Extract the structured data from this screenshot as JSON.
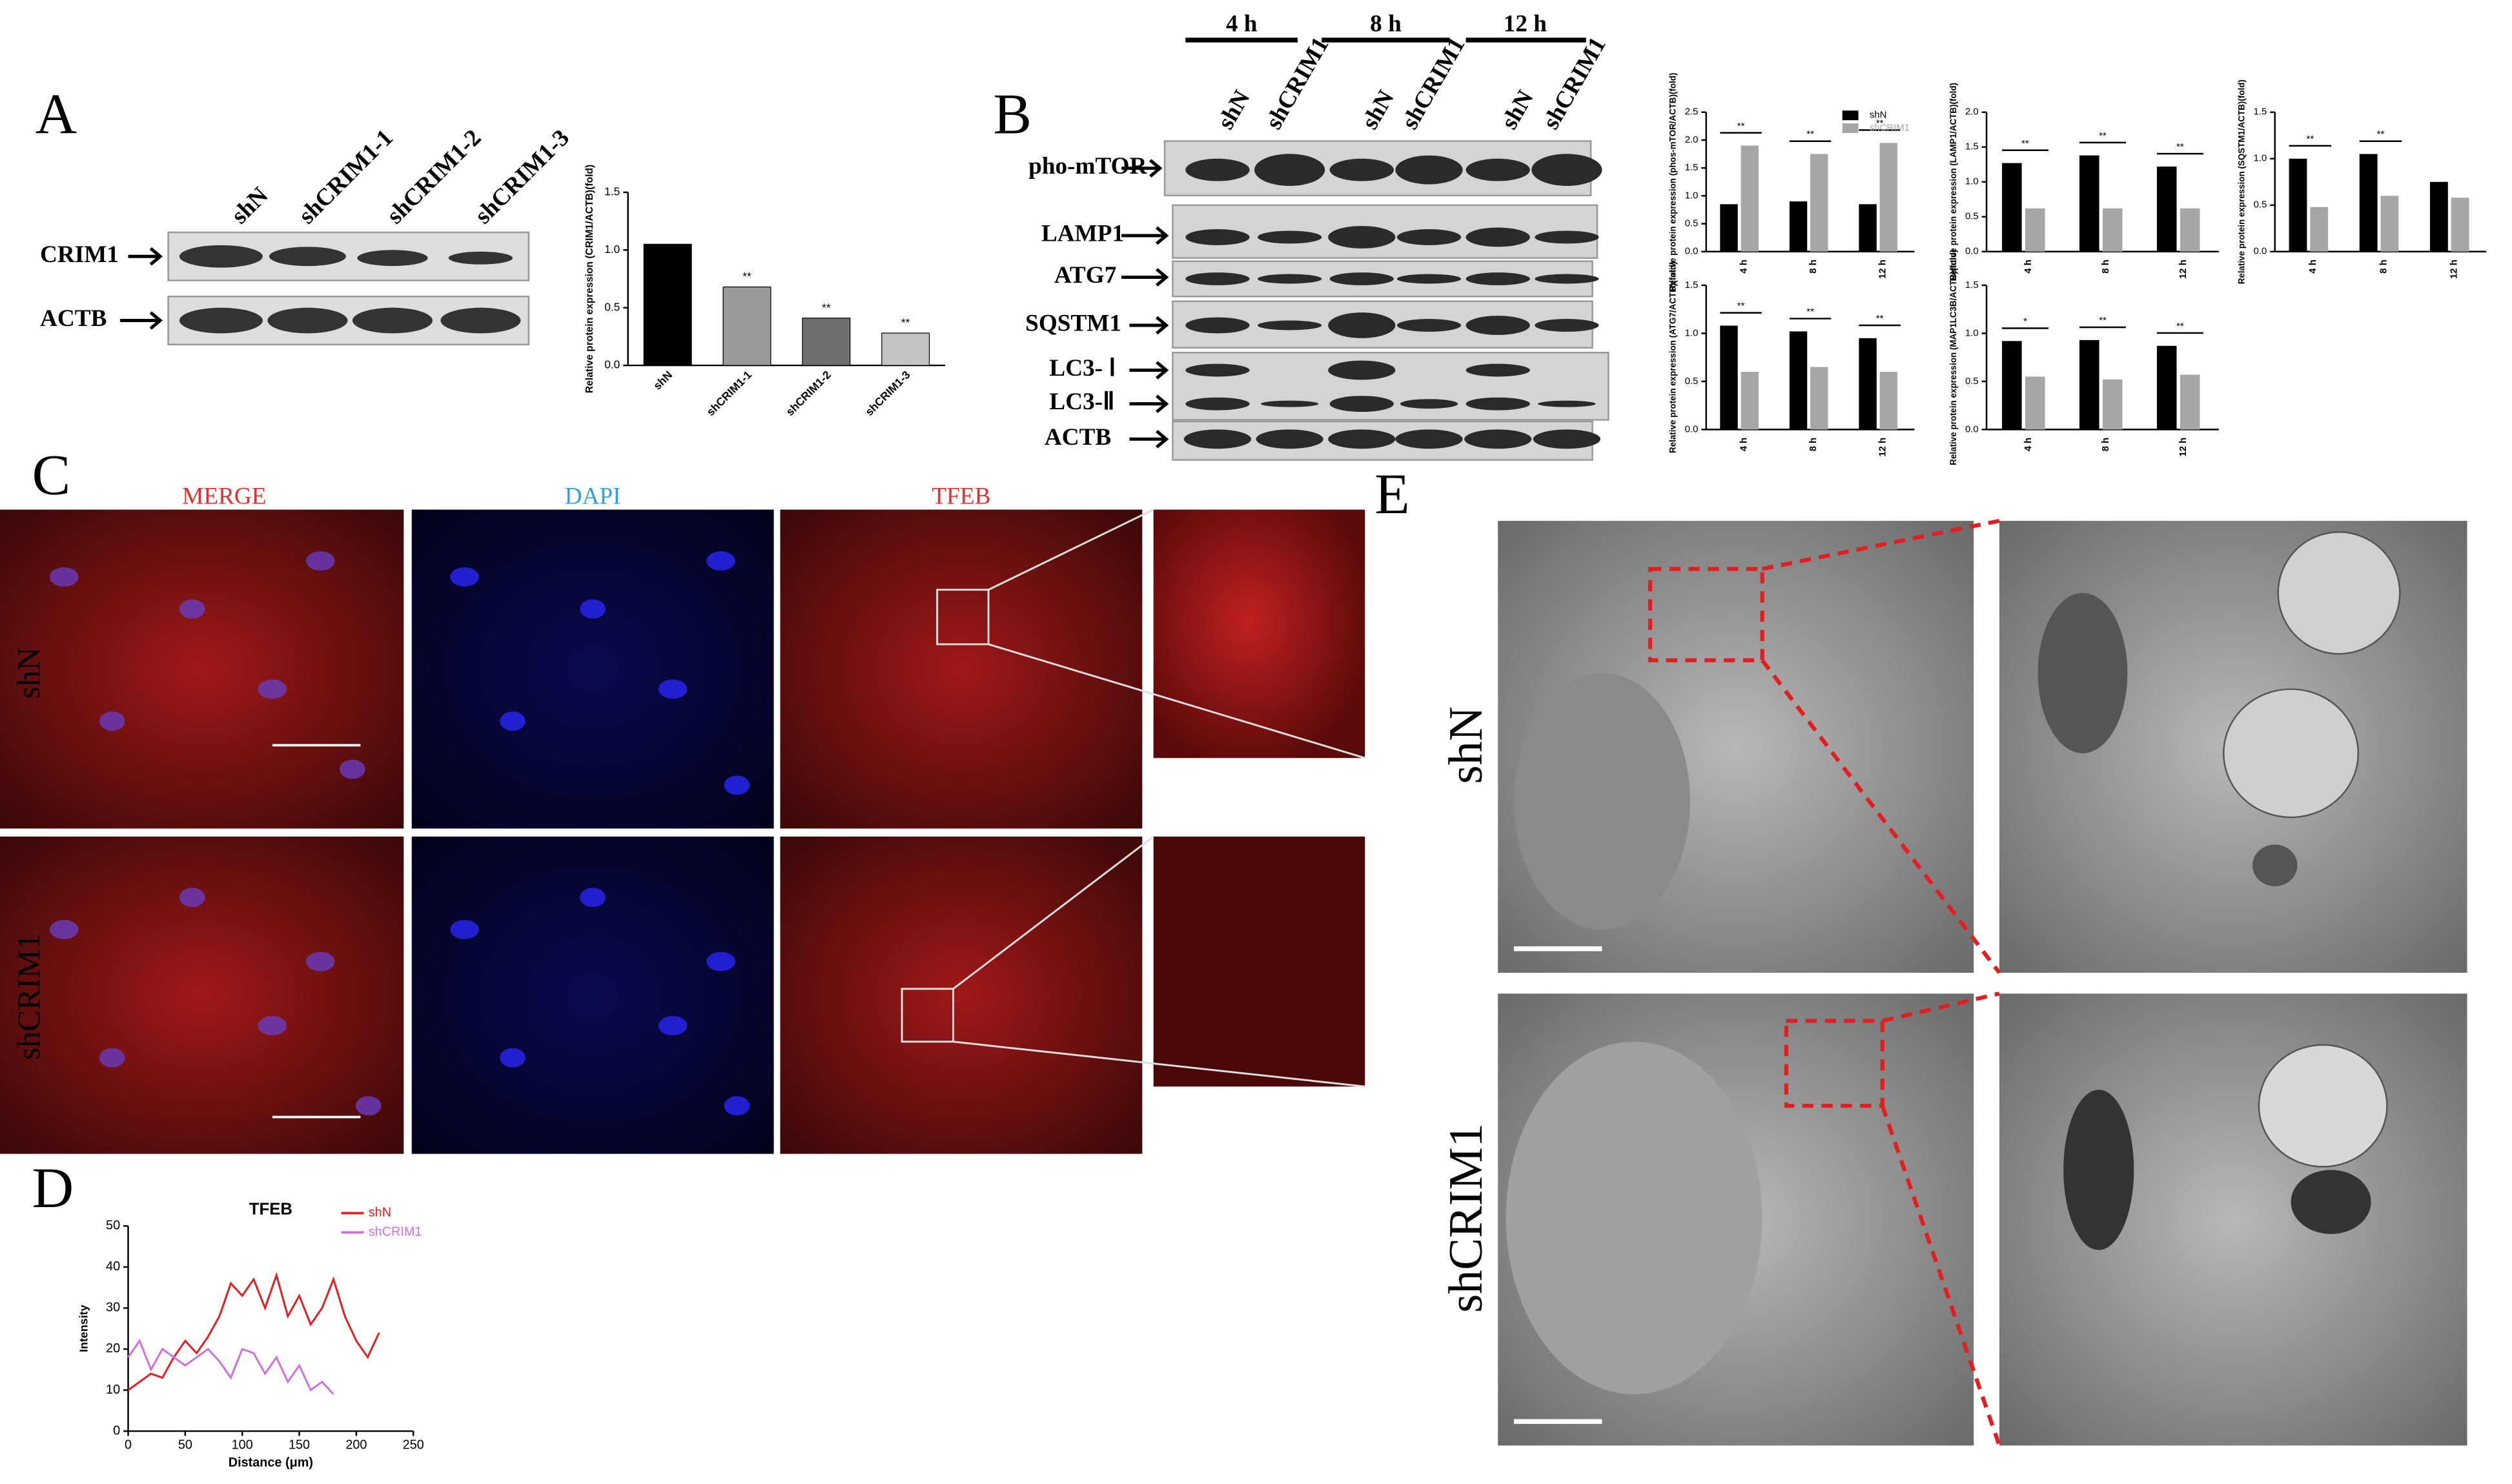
{
  "panel_labels": [
    "A",
    "B",
    "C",
    "D",
    "E"
  ],
  "blot_a": {
    "lanes": [
      "shN",
      "shCRIM1-1",
      "shCRIM1-2",
      "shCRIM1-3"
    ],
    "rows": [
      "CRIM1",
      "ACTB"
    ]
  },
  "blot_b": {
    "time_groups": [
      "4 h",
      "8 h",
      "12 h"
    ],
    "lanes": [
      "shN",
      "shCRIM1",
      "shN",
      "shCRIM1",
      "shN",
      "shCRIM1"
    ],
    "rows": [
      "pho-mTOR",
      "LAMP1",
      "ATG7",
      "SQSTM1",
      "LC3- Ⅰ",
      "LC3-Ⅱ",
      "ACTB"
    ]
  },
  "panel_c": {
    "columns": [
      "MERGE",
      "DAPI",
      "TFEB"
    ],
    "rows": [
      "shN",
      "shCRIM1"
    ]
  },
  "panel_e": {
    "rows": [
      "shN",
      "shCRIM1"
    ]
  },
  "chart_data": [
    {
      "type": "bar",
      "ylabel": "Relative protein expression (CRIM1/ACTB)(fold)",
      "categories": [
        "shN",
        "shCRIM1-1",
        "shCRIM1-2",
        "shCRIM1-3"
      ],
      "values": [
        1.05,
        0.68,
        0.41,
        0.28
      ],
      "colors": [
        "#000000",
        "#9a9a9a",
        "#707070",
        "#c4c4c4"
      ],
      "annotations": [
        null,
        "**",
        "**",
        "**"
      ],
      "ylim": [
        0,
        1.5
      ],
      "yticks": [
        {
          "value": 0,
          "label": "0.0"
        },
        {
          "value": 0.5,
          "label": "0.5"
        },
        {
          "value": 1,
          "label": "1.0"
        },
        {
          "value": 1.5,
          "label": "1.5"
        }
      ]
    },
    {
      "type": "bar",
      "ylabel": "Relative protein expression (phos-mTOR/ACTB)(fold)",
      "categories": [
        "4 h",
        "8 h",
        "12 h"
      ],
      "series": [
        {
          "name": "shN",
          "color": "#000000",
          "values": [
            0.85,
            0.9,
            0.85
          ]
        },
        {
          "name": "shCRIM1",
          "color": "#a6a6a6",
          "values": [
            1.9,
            1.75,
            1.95
          ]
        }
      ],
      "annotations": [
        "**",
        "**",
        "**"
      ],
      "legend": "upper right",
      "ylim": [
        0,
        2.5
      ],
      "yticks": [
        {
          "value": 0,
          "label": "0.0"
        },
        {
          "value": 0.5,
          "label": "0.5"
        },
        {
          "value": 1,
          "label": "1.0"
        },
        {
          "value": 1.5,
          "label": "1.5"
        },
        {
          "value": 2,
          "label": "2.0"
        },
        {
          "value": 2.5,
          "label": "2.5"
        }
      ]
    },
    {
      "type": "bar",
      "ylabel": "Relative protein expression (LAMP1/ACTB)(fold)",
      "categories": [
        "4 h",
        "8 h",
        "12 h"
      ],
      "series": [
        {
          "color": "#000000",
          "values": [
            1.27,
            1.38,
            1.22
          ]
        },
        {
          "color": "#a6a6a6",
          "values": [
            0.62,
            0.62,
            0.62
          ]
        }
      ],
      "annotations": [
        "**",
        "**",
        "**"
      ],
      "ylim": [
        0,
        2
      ],
      "yticks": [
        {
          "value": 0,
          "label": "0.0"
        },
        {
          "value": 0.5,
          "label": "0.5"
        },
        {
          "value": 1,
          "label": "1.0"
        },
        {
          "value": 1.5,
          "label": "1.5"
        },
        {
          "value": 2,
          "label": "2.0"
        }
      ]
    },
    {
      "type": "bar",
      "ylabel": "Relative protein expression (SQSTM1/ACTB)(fold)",
      "categories": [
        "4 h",
        "8 h",
        "12 h"
      ],
      "series": [
        {
          "color": "#000000",
          "values": [
            1.0,
            1.05,
            0.75
          ]
        },
        {
          "color": "#a6a6a6",
          "values": [
            0.48,
            0.6,
            0.58
          ]
        }
      ],
      "annotations": [
        "**",
        "**",
        null
      ],
      "ylim": [
        0,
        1.5
      ],
      "yticks": [
        {
          "value": 0,
          "label": "0.0"
        },
        {
          "value": 0.5,
          "label": "0.5"
        },
        {
          "value": 1,
          "label": "1.0"
        },
        {
          "value": 1.5,
          "label": "1.5"
        }
      ]
    },
    {
      "type": "bar",
      "ylabel": "Relative protein expression (ATG7/ACTB)(fold)",
      "categories": [
        "4 h",
        "8 h",
        "12 h"
      ],
      "series": [
        {
          "color": "#000000",
          "values": [
            1.08,
            1.02,
            0.95
          ]
        },
        {
          "color": "#a6a6a6",
          "values": [
            0.6,
            0.65,
            0.6
          ]
        }
      ],
      "annotations": [
        "**",
        "**",
        "**"
      ],
      "ylim": [
        0,
        1.5
      ],
      "yticks": [
        {
          "value": 0,
          "label": "0.0"
        },
        {
          "value": 0.5,
          "label": "0.5"
        },
        {
          "value": 1,
          "label": "1.0"
        },
        {
          "value": 1.5,
          "label": "1.5"
        }
      ]
    },
    {
      "type": "bar",
      "ylabel": "Relative protein expression (MAP1LC3B/ACTB)(fold)",
      "categories": [
        "4 h",
        "8 h",
        "12 h"
      ],
      "series": [
        {
          "color": "#000000",
          "values": [
            0.92,
            0.93,
            0.87
          ]
        },
        {
          "color": "#a6a6a6",
          "values": [
            0.55,
            0.52,
            0.57
          ]
        }
      ],
      "annotations": [
        "*",
        "**",
        "**"
      ],
      "ylim": [
        0,
        1.5
      ],
      "yticks": [
        {
          "value": 0,
          "label": "0.0"
        },
        {
          "value": 0.5,
          "label": "0.5"
        },
        {
          "value": 1,
          "label": "1.0"
        },
        {
          "value": 1.5,
          "label": "1.5"
        }
      ]
    },
    {
      "type": "line",
      "title": "TFEB",
      "xlabel": "Distance (μm)",
      "ylabel": "Intensity",
      "legend": "upper right",
      "series": [
        {
          "name": "shN",
          "color": "#e02020",
          "x": [
            0,
            10,
            20,
            30,
            40,
            50,
            60,
            70,
            80,
            90,
            100,
            110,
            120,
            130,
            140,
            150,
            160,
            170,
            180,
            190,
            200,
            210,
            220
          ],
          "values": [
            10,
            12,
            14,
            13,
            18,
            22,
            19,
            23,
            28,
            36,
            33,
            37,
            30,
            38,
            28,
            33,
            26,
            30,
            37,
            28,
            22,
            18,
            24
          ]
        },
        {
          "name": "shCRIM1",
          "color": "#d070e0",
          "x": [
            0,
            10,
            20,
            30,
            40,
            50,
            60,
            70,
            80,
            90,
            100,
            110,
            120,
            130,
            140,
            150,
            160,
            170,
            180
          ],
          "values": [
            18,
            22,
            15,
            20,
            18,
            16,
            18,
            20,
            17,
            13,
            20,
            19,
            14,
            18,
            12,
            16,
            10,
            12,
            9
          ]
        }
      ],
      "xlim": [
        0,
        250
      ],
      "xticks": [
        0,
        50,
        100,
        150,
        200,
        250
      ],
      "ylim": [
        0,
        50
      ],
      "yticks": [
        0,
        10,
        20,
        30,
        40,
        50
      ]
    }
  ]
}
